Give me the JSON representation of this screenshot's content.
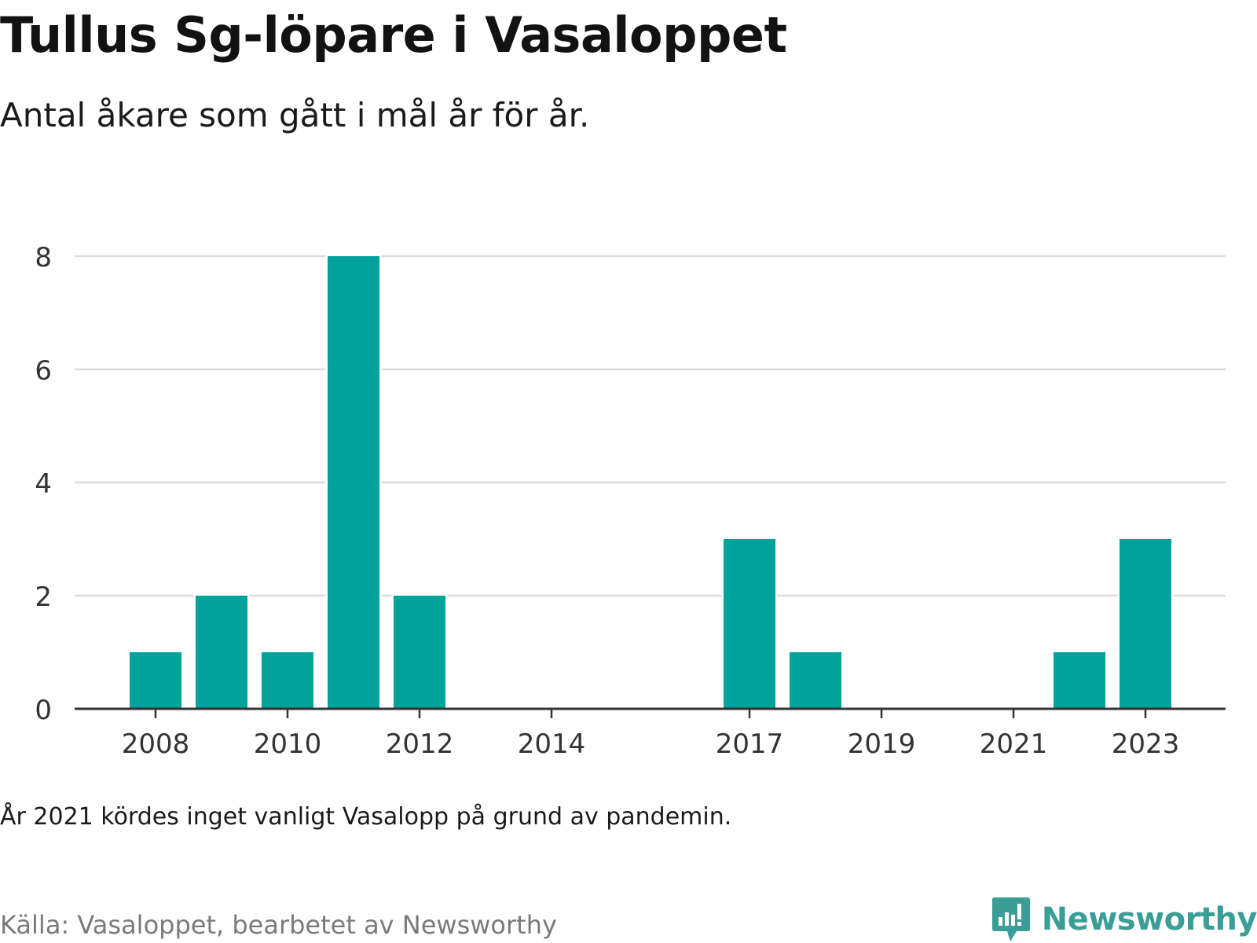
{
  "header": {
    "title": "Tullus Sg-löpare i Vasaloppet",
    "subtitle": "Antal åkare som gått i mål år för år."
  },
  "chart_data": {
    "type": "bar",
    "categories": [
      "2008",
      "2009",
      "2010",
      "2011",
      "2012",
      "2013",
      "2014",
      "2016",
      "2017",
      "2018",
      "2019",
      "2020",
      "2021",
      "2022",
      "2023"
    ],
    "values": [
      1,
      2,
      1,
      8,
      2,
      0,
      0,
      0,
      3,
      1,
      0,
      0,
      0,
      1,
      3
    ],
    "x_tick_labels": [
      "2008",
      "2010",
      "2012",
      "2014",
      "2017",
      "2019",
      "2021",
      "2023"
    ],
    "y_ticks": [
      0,
      2,
      4,
      6,
      8
    ],
    "ylim": [
      0,
      8
    ],
    "xlabel": "",
    "ylabel": "",
    "grid": true,
    "bar_color": "#00a29a"
  },
  "footer": {
    "note": "År 2021 kördes inget vanligt Vasalopp på grund av pandemin.",
    "source": "Källa: Vasaloppet, bearbetet av Newsworthy",
    "brand": "Newsworthy",
    "brand_icon": "newsworthy-logo-icon",
    "brand_color": "#3a9e97"
  }
}
